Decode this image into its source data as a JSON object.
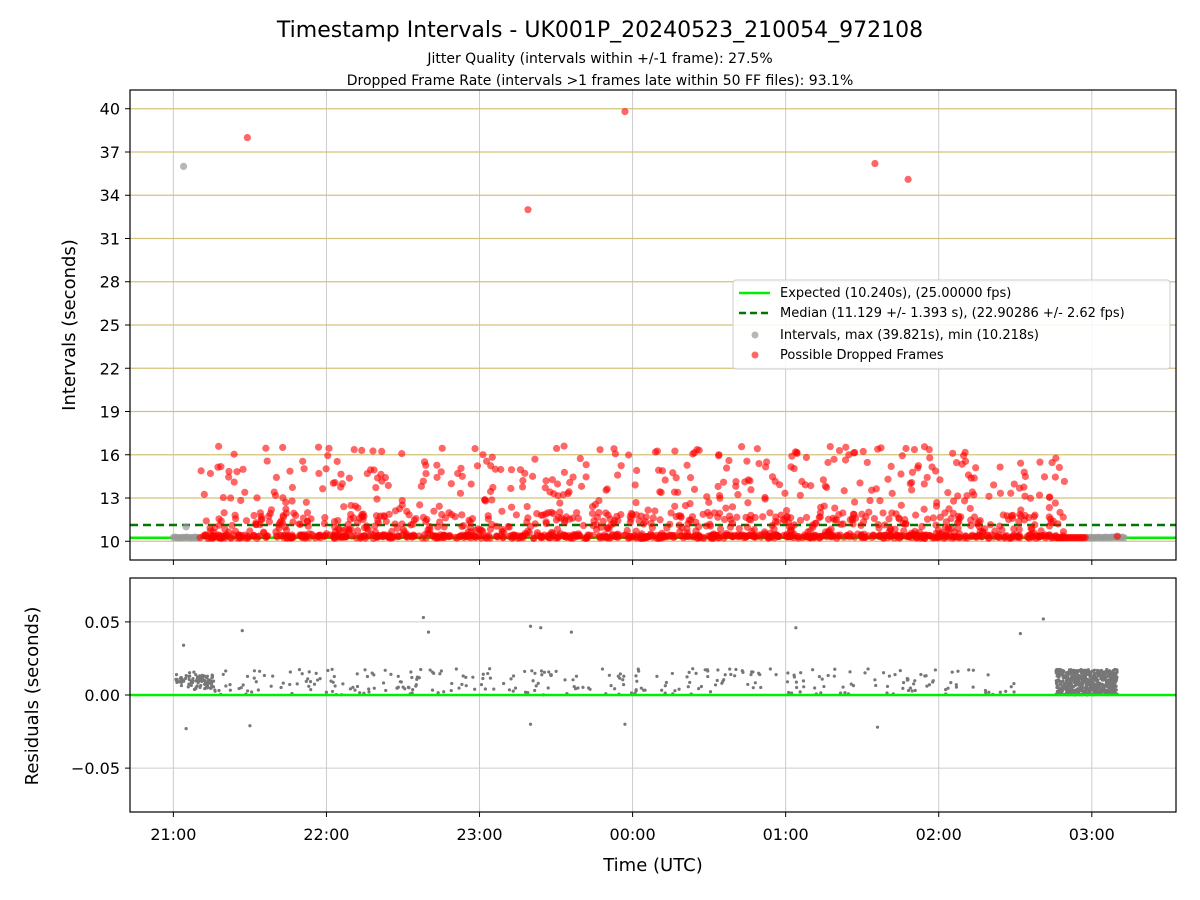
{
  "figure": {
    "title": "Timestamp Intervals - UK001P_20240523_210054_972108",
    "subtitle_line1": "Jitter Quality (intervals within +/-1 frame): 27.5%",
    "subtitle_line2": "Dropped Frame Rate (intervals >1 frames late within 50 FF files): 93.1%"
  },
  "colors": {
    "expected_line": "#00ee00",
    "median_line": "#007700",
    "interval_points": "#999999",
    "dropped_points": "#ff0000",
    "residual_points": "#777777",
    "h_grid_top": "#d4c27a",
    "grid": "#cccccc"
  },
  "chart_data": [
    {
      "type": "scatter",
      "name": "intervals-panel",
      "ylabel": "Intervals (seconds)",
      "ylim": [
        8.7,
        41.3
      ],
      "xlim": [
        "20:43",
        "03:33"
      ],
      "yticks": [
        "10",
        "13",
        "16",
        "19",
        "22",
        "25",
        "28",
        "31",
        "34",
        "37",
        "40"
      ],
      "grid": true,
      "legend_position": "center-right",
      "legend": [
        "Expected (10.240s), (25.00000 fps)",
        "Median (11.129 +/- 1.393 s), (22.90286 +/- 2.62 fps)",
        "Intervals, max (39.821s), min (10.218s)",
        "Possible Dropped Frames"
      ],
      "expected": 10.24,
      "median": 11.129,
      "outliers_intervals": [
        {
          "x": "21:04",
          "y": 36.0
        }
      ],
      "outliers_dropped": [
        {
          "x": "21:29",
          "y": 38.0
        },
        {
          "x": "23:19",
          "y": 33.0
        },
        {
          "x": "23:57",
          "y": 39.8
        },
        {
          "x": "01:35",
          "y": 36.2
        },
        {
          "x": "01:48",
          "y": 35.1
        }
      ],
      "dropped_band": {
        "x_start": "21:10",
        "x_end": "02:50",
        "y_min": 10.2,
        "y_max": 16.6,
        "approx_count": 1400
      }
    },
    {
      "type": "scatter",
      "name": "residuals-panel",
      "xlabel": "Time (UTC)",
      "ylabel": "Residuals (seconds)",
      "ylim": [
        -0.08,
        0.08
      ],
      "yticks": [
        "−0.05",
        "0.00",
        "0.05"
      ],
      "xticks": [
        "21:00",
        "22:00",
        "23:00",
        "00:00",
        "01:00",
        "02:00",
        "03:00"
      ],
      "grid": true,
      "zero_line": 0.0,
      "outliers": [
        {
          "x": "21:04",
          "y": 0.034
        },
        {
          "x": "21:05",
          "y": -0.023
        },
        {
          "x": "21:27",
          "y": 0.044
        },
        {
          "x": "21:30",
          "y": -0.021
        },
        {
          "x": "22:38",
          "y": 0.053
        },
        {
          "x": "22:40",
          "y": 0.043
        },
        {
          "x": "23:20",
          "y": 0.047
        },
        {
          "x": "23:24",
          "y": 0.046
        },
        {
          "x": "23:20",
          "y": -0.02
        },
        {
          "x": "23:36",
          "y": 0.043
        },
        {
          "x": "23:57",
          "y": -0.02
        },
        {
          "x": "01:04",
          "y": 0.046
        },
        {
          "x": "01:36",
          "y": -0.022
        },
        {
          "x": "02:32",
          "y": 0.042
        },
        {
          "x": "02:41",
          "y": 0.052
        }
      ]
    }
  ]
}
